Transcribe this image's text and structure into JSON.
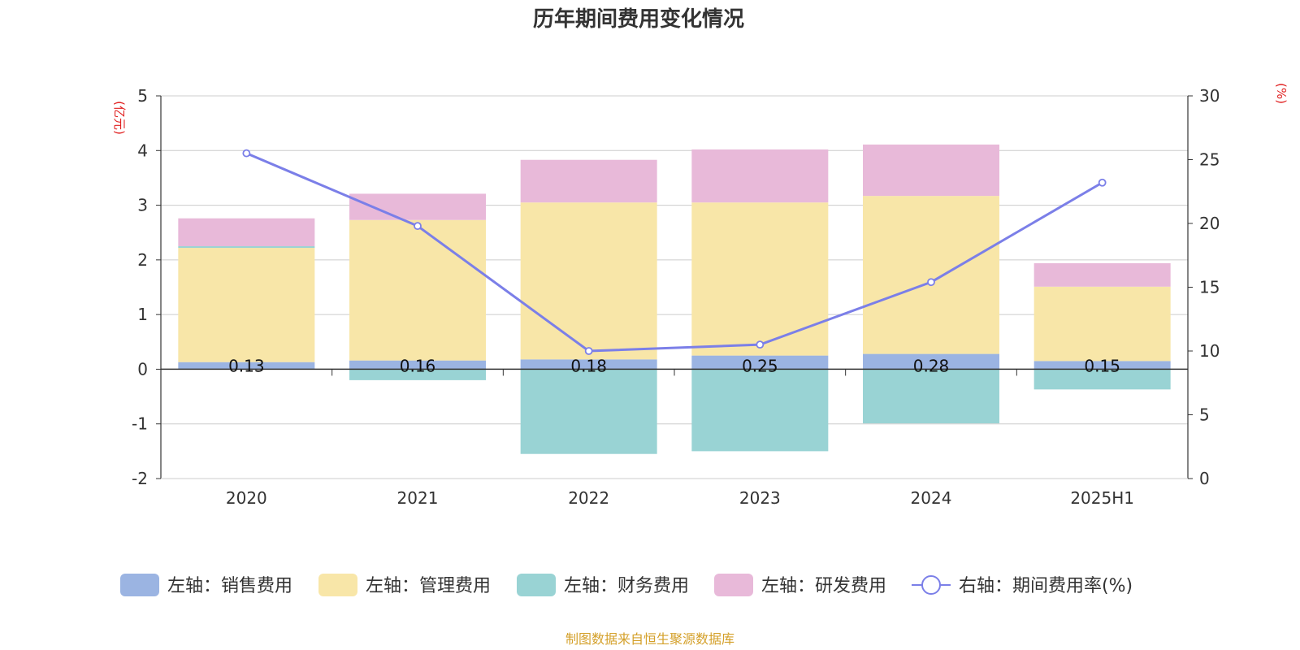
{
  "chart_data": {
    "type": "bar",
    "title": "历年期间费用变化情况",
    "categories": [
      "2020",
      "2021",
      "2022",
      "2023",
      "2024",
      "2025H1"
    ],
    "series": [
      {
        "name": "左轴：销售费用",
        "kind": "bar",
        "axis": "left",
        "color": "#9bb4e2",
        "values": [
          0.13,
          0.16,
          0.18,
          0.25,
          0.28,
          0.15
        ]
      },
      {
        "name": "左轴：管理费用",
        "kind": "bar",
        "axis": "left",
        "color": "#f8e6a8",
        "values": [
          2.09,
          2.57,
          2.87,
          2.8,
          2.89,
          1.36
        ]
      },
      {
        "name": "左轴：财务费用",
        "kind": "bar",
        "axis": "left",
        "color": "#99d3d4",
        "values": [
          0.03,
          -0.2,
          -1.55,
          -1.5,
          -0.99,
          -0.37
        ]
      },
      {
        "name": "左轴：研发费用",
        "kind": "bar",
        "axis": "left",
        "color": "#e8b9d9",
        "values": [
          0.51,
          0.48,
          0.78,
          0.97,
          0.94,
          0.43
        ]
      },
      {
        "name": "右轴：期间费用率(%)",
        "kind": "line",
        "axis": "right",
        "color": "#7b7fe8",
        "values": [
          25.5,
          19.8,
          10.0,
          10.5,
          15.4,
          23.2
        ]
      }
    ],
    "data_labels": [
      "0.13",
      "0.16",
      "0.18",
      "0.25",
      "0.28",
      "0.15"
    ],
    "left_axis": {
      "unit": "(亿元)",
      "min": -2,
      "max": 5,
      "ticks": [
        "5",
        "4",
        "3",
        "2",
        "1",
        "0",
        "-1",
        "-2"
      ]
    },
    "right_axis": {
      "unit": "(%)",
      "min": 0,
      "max": 30,
      "ticks": [
        "30",
        "25",
        "20",
        "15",
        "10",
        "5",
        "0"
      ]
    },
    "grid": true,
    "legend_position": "bottom",
    "unit_color": "#e02020"
  },
  "source": {
    "text": "制图数据来自恒生聚源数据库",
    "color": "#d4a02a"
  }
}
